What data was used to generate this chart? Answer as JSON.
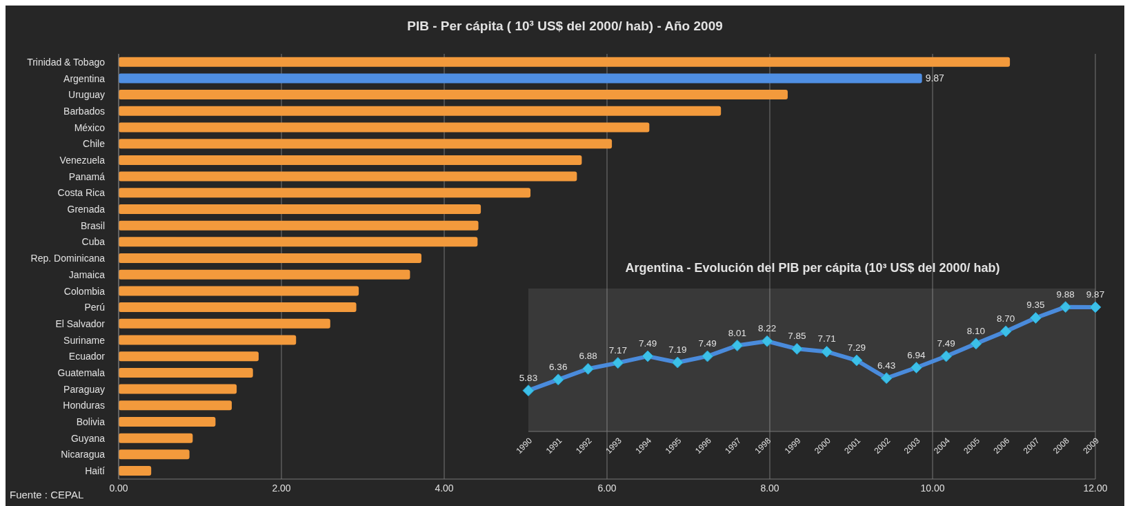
{
  "chart_data": [
    {
      "type": "bar",
      "orientation": "horizontal",
      "title": "PIB - Per cápita ( 10³ US$ del 2000/ hab) - Año 2009",
      "categories": [
        "Trinidad & Tobago",
        "Argentina",
        "Uruguay",
        "Barbados",
        "México",
        "Chile",
        "Venezuela",
        "Panamá",
        "Costa Rica",
        "Grenada",
        "Brasil",
        "Cuba",
        "Rep. Dominicana",
        "Jamaica",
        "Colombia",
        "Perú",
        "El Salvador",
        "Suriname",
        "Ecuador",
        "Guatemala",
        "Paraguay",
        "Honduras",
        "Bolivia",
        "Guyana",
        "Nicaragua",
        "Haití"
      ],
      "values": [
        10.95,
        9.87,
        8.22,
        7.4,
        6.52,
        6.06,
        5.69,
        5.63,
        5.06,
        4.45,
        4.42,
        4.41,
        3.72,
        3.58,
        2.95,
        2.92,
        2.6,
        2.18,
        1.72,
        1.65,
        1.45,
        1.39,
        1.19,
        0.91,
        0.87,
        0.4
      ],
      "colors": [
        "#f39a3c",
        "#4f8fe3",
        "#f39a3c",
        "#f39a3c",
        "#f39a3c",
        "#f39a3c",
        "#f39a3c",
        "#f39a3c",
        "#f39a3c",
        "#f39a3c",
        "#f39a3c",
        "#f39a3c",
        "#f39a3c",
        "#f39a3c",
        "#f39a3c",
        "#f39a3c",
        "#f39a3c",
        "#f39a3c",
        "#f39a3c",
        "#f39a3c",
        "#f39a3c",
        "#f39a3c",
        "#f39a3c",
        "#f39a3c",
        "#f39a3c",
        "#f39a3c"
      ],
      "value_labels": [
        null,
        "9.87",
        null,
        null,
        null,
        null,
        null,
        null,
        null,
        null,
        null,
        null,
        null,
        null,
        null,
        null,
        null,
        null,
        null,
        null,
        null,
        null,
        null,
        null,
        null,
        null
      ],
      "xlim": [
        0,
        12
      ],
      "xticks": [
        {
          "value": 0,
          "label": "0.00"
        },
        {
          "value": 2,
          "label": "2.00"
        },
        {
          "value": 4,
          "label": "4.00"
        },
        {
          "value": 6,
          "label": "6.00"
        },
        {
          "value": 8,
          "label": "8.00"
        },
        {
          "value": 10,
          "label": "10.00"
        },
        {
          "value": 12,
          "label": "12.00"
        }
      ],
      "grid": "x",
      "annotations": [
        "Fuente : CEPAL"
      ]
    },
    {
      "type": "line",
      "title": "Argentina - Evolución del PIB per cápita (10³ US$ del 2000/ hab)",
      "categories": [
        "1990",
        "1991",
        "1992",
        "1993",
        "1994",
        "1995",
        "1996",
        "1997",
        "1998",
        "1999",
        "2000",
        "2001",
        "2002",
        "2003",
        "2004",
        "2005",
        "2006",
        "2007",
        "2008",
        "2009"
      ],
      "values": [
        5.83,
        6.36,
        6.88,
        7.17,
        7.49,
        7.19,
        7.49,
        8.01,
        8.22,
        7.85,
        7.71,
        7.29,
        6.43,
        6.94,
        7.49,
        8.1,
        8.7,
        9.35,
        9.88,
        9.87
      ],
      "value_labels": [
        "5.83",
        "6.36",
        "6.88",
        "7.17",
        "7.49",
        "7.19",
        "7.49",
        "8.01",
        "8.22",
        "7.85",
        "7.71",
        "7.29",
        "6.43",
        "6.94",
        "7.49",
        "8.10",
        "8.70",
        "9.35",
        "9.88",
        "9.87"
      ],
      "color": "#4a8bdc",
      "marker": "diamond",
      "tick_labels": "x"
    }
  ]
}
